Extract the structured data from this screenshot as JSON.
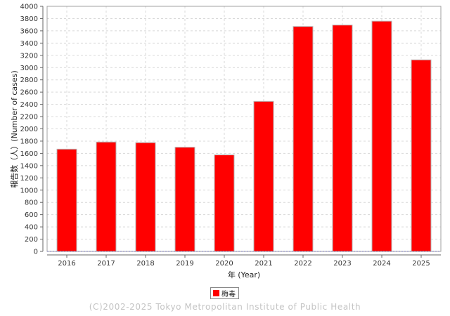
{
  "chart_data": {
    "type": "bar",
    "title": "",
    "categories": [
      "2016",
      "2017",
      "2018",
      "2019",
      "2020",
      "2021",
      "2022",
      "2023",
      "2024",
      "2025"
    ],
    "series": [
      {
        "name": "梅毒",
        "color": "#ff0000",
        "values": [
          1669,
          1785,
          1775,
          1700,
          1575,
          2449,
          3671,
          3694,
          3758,
          3126
        ]
      }
    ],
    "xlabel": "年 (Year)",
    "ylabel": "報告数（人）(Number of cases)",
    "ylim": [
      0,
      4000
    ],
    "yticks": [
      0,
      200,
      400,
      600,
      800,
      1000,
      1200,
      1400,
      1600,
      1800,
      2000,
      2200,
      2400,
      2600,
      2800,
      3000,
      3200,
      3400,
      3600,
      3800,
      4000
    ],
    "grid": true,
    "legend_position": "bottom"
  },
  "legend": {
    "label": "梅毒",
    "color": "#ff0000"
  },
  "footer": {
    "copyright": "(C)2002-2025 Tokyo Metropolitan Institute of Public Health"
  }
}
